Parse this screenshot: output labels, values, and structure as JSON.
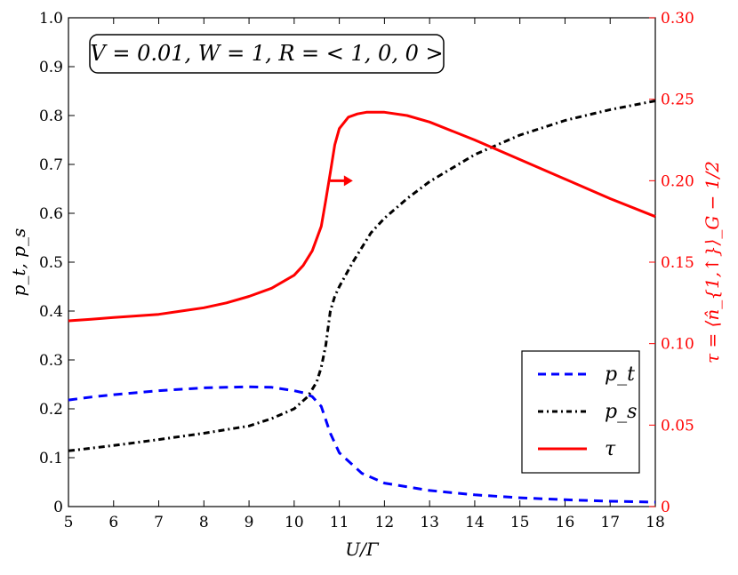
{
  "chart_data": {
    "type": "line",
    "xlabel": "U/Γ",
    "ylabel_left": "p_t, p_s",
    "ylabel_right": "τ = ⟨n̂_{1,↑}⟩_G − 1/2",
    "xlim": [
      5,
      18
    ],
    "ylim_left": [
      0,
      1
    ],
    "ylim_right": [
      0,
      0.3
    ],
    "x_ticks": [
      "5",
      "6",
      "7",
      "8",
      "9",
      "10",
      "11",
      "12",
      "13",
      "14",
      "15",
      "16",
      "17",
      "18"
    ],
    "y_ticks_left": [
      "0",
      "0.1",
      "0.2",
      "0.3",
      "0.4",
      "0.5",
      "0.6",
      "0.7",
      "0.8",
      "0.9",
      "1.0"
    ],
    "y_ticks_right": [
      "0",
      "0.05",
      "0.10",
      "0.15",
      "0.20",
      "0.25",
      "0.30"
    ],
    "annotation": "V = 0.01, W = 1, R = < 1, 0, 0 >",
    "legend_position": "lower-right",
    "grid": false,
    "series": [
      {
        "name": "p_t",
        "axis": "left",
        "color": "#0000ff",
        "style": "dashed",
        "x": [
          5.0,
          5.5,
          6.0,
          6.5,
          7.0,
          7.5,
          8.0,
          8.5,
          9.0,
          9.5,
          10.0,
          10.2,
          10.4,
          10.6,
          10.8,
          11.0,
          11.5,
          12.0,
          13.0,
          14.0,
          15.0,
          16.0,
          17.0,
          18.0
        ],
        "y": [
          0.218,
          0.224,
          0.229,
          0.233,
          0.237,
          0.24,
          0.243,
          0.244,
          0.245,
          0.244,
          0.237,
          0.233,
          0.225,
          0.205,
          0.15,
          0.11,
          0.068,
          0.048,
          0.033,
          0.024,
          0.018,
          0.014,
          0.011,
          0.009
        ]
      },
      {
        "name": "p_s",
        "axis": "left",
        "color": "#000000",
        "style": "dashdot",
        "x": [
          5.0,
          6.0,
          7.0,
          8.0,
          9.0,
          9.5,
          10.0,
          10.3,
          10.5,
          10.6,
          10.7,
          10.8,
          10.9,
          11.0,
          11.3,
          11.7,
          12.0,
          12.5,
          13.0,
          14.0,
          15.0,
          16.0,
          17.0,
          18.0
        ],
        "y": [
          0.114,
          0.125,
          0.137,
          0.15,
          0.165,
          0.18,
          0.2,
          0.225,
          0.255,
          0.285,
          0.33,
          0.4,
          0.43,
          0.45,
          0.5,
          0.56,
          0.59,
          0.63,
          0.665,
          0.72,
          0.76,
          0.79,
          0.812,
          0.83
        ]
      },
      {
        "name": "τ",
        "axis": "right",
        "color": "#ff0000",
        "style": "solid",
        "x": [
          5.0,
          5.5,
          6.0,
          6.5,
          7.0,
          7.5,
          8.0,
          8.5,
          9.0,
          9.5,
          10.0,
          10.2,
          10.4,
          10.6,
          10.7,
          10.8,
          10.9,
          11.0,
          11.2,
          11.4,
          11.6,
          11.8,
          12.0,
          12.5,
          13.0,
          14.0,
          15.0,
          16.0,
          17.0,
          18.0
        ],
        "y": [
          0.114,
          0.115,
          0.116,
          0.117,
          0.118,
          0.12,
          0.122,
          0.125,
          0.129,
          0.134,
          0.142,
          0.148,
          0.157,
          0.172,
          0.188,
          0.205,
          0.222,
          0.232,
          0.239,
          0.241,
          0.242,
          0.242,
          0.242,
          0.24,
          0.236,
          0.225,
          0.213,
          0.201,
          0.189,
          0.178
        ]
      }
    ],
    "arrow": {
      "direction": "right",
      "color": "#ff0000",
      "x_from": 10.8,
      "x_to": 11.3,
      "y_right": 0.2
    },
    "legend_entries": [
      "p_t",
      "p_s",
      "τ"
    ]
  }
}
